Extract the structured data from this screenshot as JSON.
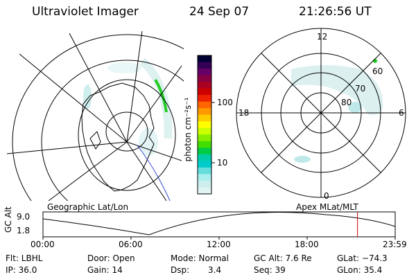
{
  "header": {
    "instrument": "Ultraviolet Imager",
    "date": "24 Sep 07",
    "time": "21:26:56 UT"
  },
  "left_panel": {
    "label": "Geographic Lat/Lon"
  },
  "right_panel": {
    "label": "Apex MLat/MLT",
    "mlt_labels": [
      "12",
      "18",
      "6",
      "0"
    ],
    "mlat_labels": [
      "60",
      "70",
      "80"
    ]
  },
  "colorbar": {
    "unit_label": "photon cm⁻²s⁻¹",
    "ticks": [
      "100",
      "10"
    ],
    "colors": [
      "#000033",
      "#330055",
      "#660066",
      "#880044",
      "#aa0022",
      "#cc0000",
      "#ee2200",
      "#ff6600",
      "#ff9900",
      "#ffcc00",
      "#ffff00",
      "#ccff00",
      "#88ee00",
      "#44dd00",
      "#00cc44",
      "#00ccaa",
      "#00cccc",
      "#66dddd",
      "#aaeeee",
      "#cceeee",
      "#e0f4f4"
    ]
  },
  "timeline": {
    "axis_label": "GC Alt",
    "y_ticks": [
      "9.0",
      "1.8"
    ],
    "x_ticks": [
      "00:00",
      "06:00",
      "12:00",
      "18:00",
      "23:59"
    ],
    "current_time_fraction": 0.893,
    "line_color": "#cc0000"
  },
  "status": {
    "flt": "Flt: LBHL",
    "ip": "IP: 36.0",
    "door": "Door: Open",
    "gain": "Gain: 14",
    "mode": "Mode: Normal",
    "dsp_label": "Dsp:",
    "dsp_value": "3.4",
    "gc_alt": "GC Alt: 7.6 Re",
    "seq": "Seq: 39",
    "glat": "GLat: −74.3",
    "glon": "GLon: 35.4"
  }
}
